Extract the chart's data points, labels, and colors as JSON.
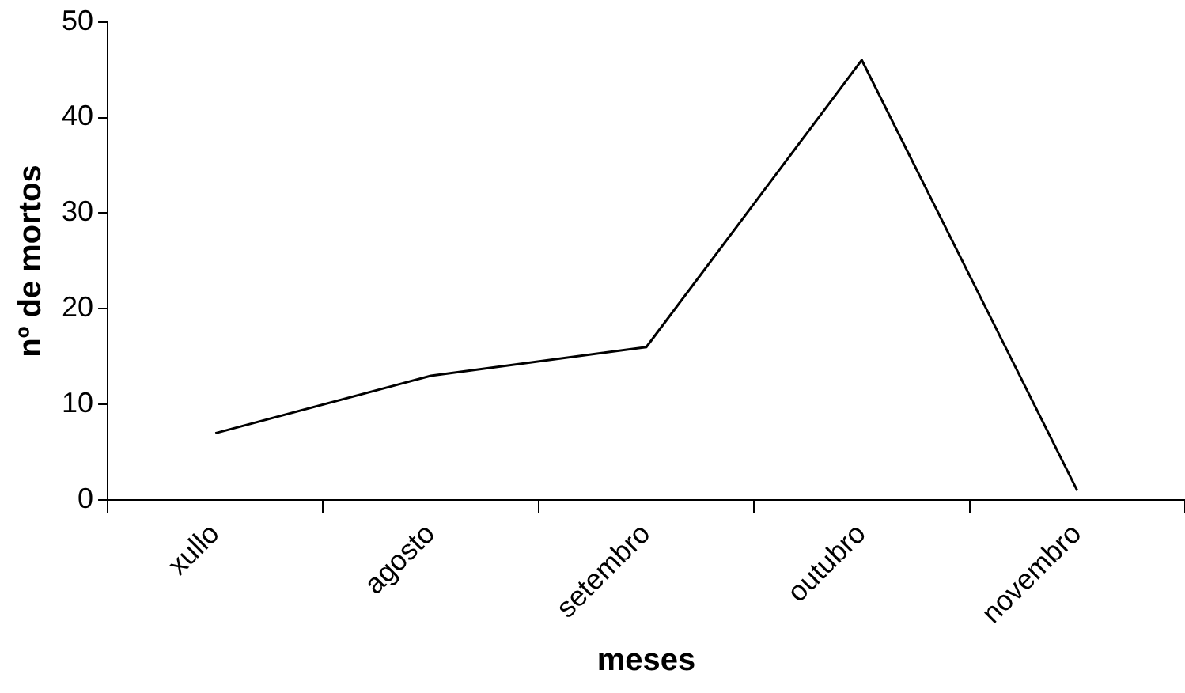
{
  "chart_data": {
    "type": "line",
    "xlabel": "meses",
    "ylabel": "nº de mortos",
    "categories": [
      "xullo",
      "agosto",
      "setembro",
      "outubro",
      "novembro"
    ],
    "series": [
      {
        "color": "#000000",
        "values": [
          7,
          13,
          16,
          46,
          1
        ]
      }
    ],
    "ylim": [
      0,
      50
    ],
    "yticks": [
      0,
      10,
      20,
      30,
      40,
      50
    ],
    "grid": false,
    "legend": false,
    "marker": "none",
    "line_style": "solid"
  }
}
